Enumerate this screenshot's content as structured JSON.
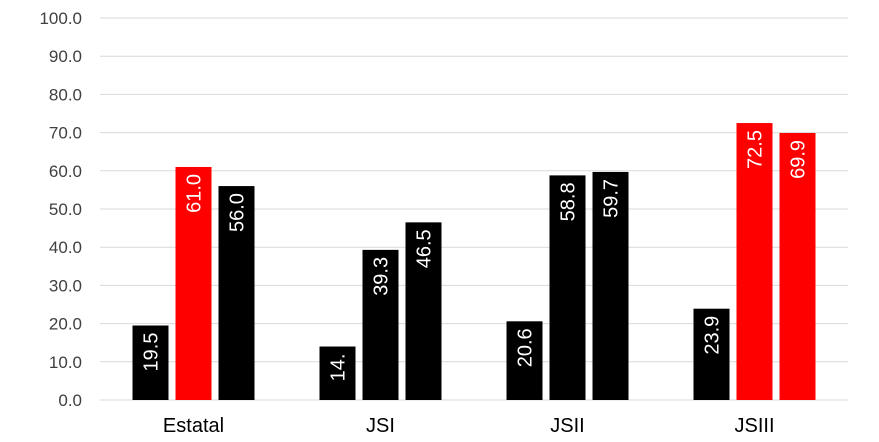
{
  "chart_data": {
    "type": "bar",
    "title": "",
    "xlabel": "",
    "ylabel": "",
    "ylim": [
      0,
      100
    ],
    "yticks": [
      "0.0",
      "10.0",
      "20.0",
      "30.0",
      "40.0",
      "50.0",
      "60.0",
      "70.0",
      "80.0",
      "90.0",
      "100.0"
    ],
    "categories": [
      "Estatal",
      "JSI",
      "JSII",
      "JSIII"
    ],
    "series": [
      {
        "values": [
          19.5,
          14.0,
          20.6,
          23.9
        ],
        "colors": [
          "#000000",
          "#000000",
          "#000000",
          "#000000"
        ]
      },
      {
        "values": [
          61.0,
          39.3,
          58.8,
          72.5
        ],
        "colors": [
          "#ff0000",
          "#000000",
          "#000000",
          "#ff0000"
        ]
      },
      {
        "values": [
          56.0,
          46.5,
          59.7,
          69.9
        ],
        "colors": [
          "#000000",
          "#000000",
          "#000000",
          "#ff0000"
        ]
      }
    ],
    "data_labels": [
      [
        "19.5",
        "14.",
        "20.6",
        "23.9"
      ],
      [
        "61.0",
        "39.3",
        "58.8",
        "72.5"
      ],
      [
        "56.0",
        "46.5",
        "59.7",
        "69.9"
      ]
    ],
    "grid": true,
    "legend": false
  }
}
